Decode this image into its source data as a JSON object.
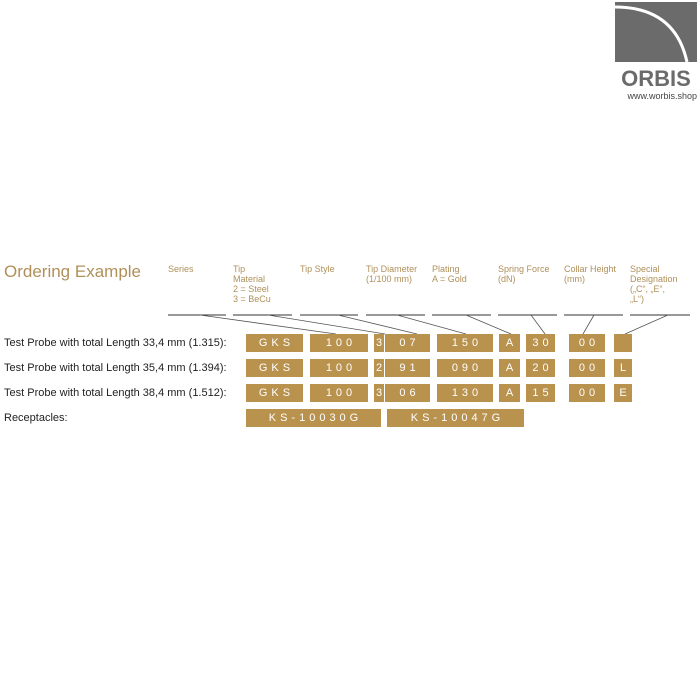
{
  "logo": {
    "brand": "ORBIS",
    "url": "www.worbis.shop"
  },
  "title": "Ordering Example",
  "headers": [
    "Series",
    "Tip\nMaterial\n2 = Steel\n3 = BeCu",
    "Tip Style",
    "Tip Diameter\n(1/100 mm)",
    "Plating\nA = Gold",
    "Spring Force\n(dN)",
    "Collar Height\n(mm)",
    "Special\nDesignation\n(„C“, „E“,\n„L“)"
  ],
  "rows": [
    {
      "label": "Test Probe with total Length 33,4 mm (1.315):",
      "codes": [
        "GKS",
        "100",
        "3",
        "07",
        "150",
        "A",
        "30",
        "00",
        ""
      ]
    },
    {
      "label": "Test Probe with total Length 35,4 mm (1.394):",
      "codes": [
        "GKS",
        "100",
        "2",
        "91",
        "090",
        "A",
        "20",
        "00",
        "L"
      ]
    },
    {
      "label": "Test Probe with total Length 38,4 mm (1.512):",
      "codes": [
        "GKS",
        "100",
        "3",
        "06",
        "130",
        "A",
        "15",
        "00",
        "E"
      ]
    }
  ],
  "receptacles": {
    "label": "Receptacles:",
    "codes": [
      "KS-10030G",
      "KS-10047G"
    ]
  },
  "colors": {
    "gold": "#b9924e",
    "title": "#b0905a",
    "logo": "#6b6b6b"
  }
}
